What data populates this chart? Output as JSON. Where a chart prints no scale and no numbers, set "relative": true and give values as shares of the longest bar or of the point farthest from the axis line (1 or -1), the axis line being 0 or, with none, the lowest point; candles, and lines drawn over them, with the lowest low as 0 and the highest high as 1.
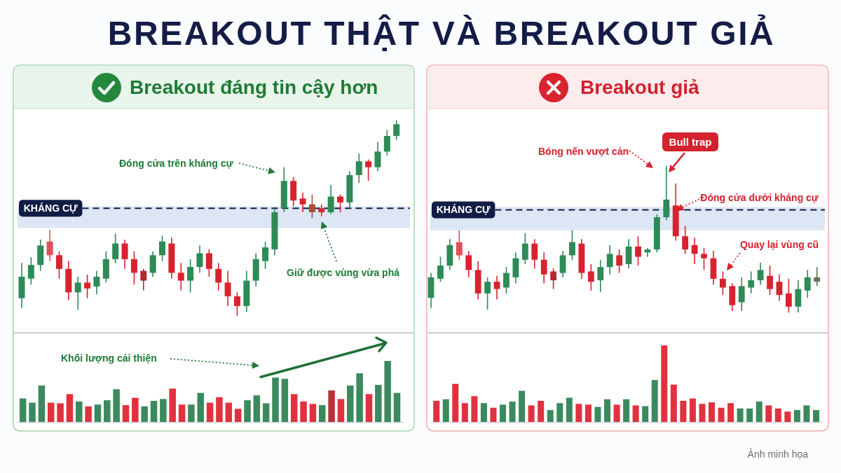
{
  "chart_data": [
    {
      "type": "other",
      "title": "BREAKOUT THẬT VÀ BREAKOUT GIẢ"
    },
    {
      "type": "candlestick",
      "title": "Breakout đáng tin cậy hơn",
      "relative": true,
      "categories": [
        null,
        null,
        null,
        null,
        null,
        null,
        null,
        null,
        null,
        null,
        null,
        null,
        null,
        null,
        null,
        null,
        null,
        null,
        null,
        null,
        null,
        null,
        null,
        null,
        null,
        null,
        null,
        null,
        null,
        null,
        null,
        null,
        null,
        null,
        null,
        null,
        null,
        null,
        null,
        null,
        null
      ],
      "ohlc": [
        [
          0.09,
          0.27,
          0.04,
          0.2
        ],
        [
          0.19,
          0.3,
          0.16,
          0.26
        ],
        [
          0.26,
          0.39,
          0.23,
          0.36
        ],
        [
          0.38,
          0.44,
          0.28,
          0.31
        ],
        [
          0.31,
          0.33,
          0.19,
          0.24
        ],
        [
          0.24,
          0.28,
          0.08,
          0.12
        ],
        [
          0.12,
          0.2,
          0.03,
          0.17
        ],
        [
          0.17,
          0.21,
          0.09,
          0.14
        ],
        [
          0.15,
          0.23,
          0.11,
          0.2
        ],
        [
          0.19,
          0.33,
          0.17,
          0.29
        ],
        [
          0.29,
          0.42,
          0.27,
          0.37
        ],
        [
          0.37,
          0.39,
          0.24,
          0.29
        ],
        [
          0.29,
          0.33,
          0.16,
          0.22
        ],
        [
          0.23,
          0.24,
          0.13,
          0.18
        ],
        [
          0.22,
          0.33,
          0.2,
          0.31
        ],
        [
          0.31,
          0.41,
          0.28,
          0.38
        ],
        [
          0.37,
          0.4,
          0.19,
          0.22
        ],
        [
          0.22,
          0.27,
          0.13,
          0.18
        ],
        [
          0.18,
          0.29,
          0.12,
          0.25
        ],
        [
          0.25,
          0.36,
          0.22,
          0.32
        ],
        [
          0.32,
          0.34,
          0.2,
          0.24
        ],
        [
          0.24,
          0.27,
          0.13,
          0.17
        ],
        [
          0.17,
          0.23,
          0.05,
          0.1
        ],
        [
          0.1,
          0.12,
          0,
          0.05
        ],
        [
          0.05,
          0.23,
          0.02,
          0.18
        ],
        [
          0.18,
          0.32,
          0.15,
          0.29
        ],
        [
          0.28,
          0.38,
          0.24,
          0.35
        ],
        [
          0.34,
          0.55,
          0.31,
          0.53
        ],
        [
          0.55,
          0.76,
          0.53,
          0.69
        ],
        [
          0.69,
          0.71,
          0.56,
          0.59
        ],
        [
          0.6,
          0.63,
          0.53,
          0.57
        ],
        [
          0.57,
          0.62,
          0.5,
          0.53
        ],
        [
          0.55,
          0.57,
          0.51,
          0.53
        ],
        [
          0.53,
          0.67,
          0.52,
          0.61
        ],
        [
          0.61,
          0.62,
          0.53,
          0.58
        ],
        [
          0.58,
          0.74,
          0.55,
          0.72
        ],
        [
          0.72,
          0.83,
          0.68,
          0.79
        ],
        [
          0.79,
          0.8,
          0.69,
          0.76
        ],
        [
          0.76,
          0.89,
          0.74,
          0.84
        ],
        [
          0.84,
          0.95,
          0.82,
          0.92
        ],
        [
          0.92,
          1,
          0.9,
          0.98
        ]
      ],
      "colors": [
        "#2e8a56",
        "#2e8a56",
        "#2e8a56",
        "#e44e58",
        "#d8232f",
        "#d8232f",
        "#2e8a56",
        "#d8232f",
        "#2e8a56",
        "#2e8a56",
        "#2e8a56",
        "#d8232f",
        "#d8232f",
        "#b1282e",
        "#2e8a56",
        "#2e8a56",
        "#d8232f",
        "#d8232f",
        "#2e8a56",
        "#2e8a56",
        "#d8232f",
        "#d8232f",
        "#d8232f",
        "#d8232f",
        "#2e8a56",
        "#2e8a56",
        "#2e8a56",
        "#2e8a56",
        "#2e8a56",
        "#d8232f",
        "#d8232f",
        "#a5503a",
        "#d8232f",
        "#2e8a56",
        "#d8232f",
        "#2e8a56",
        "#2e8a56",
        "#d8232f",
        "#2e8a56",
        "#2e8a56",
        "#2e8a56"
      ],
      "bands": [
        {
          "axis": "y",
          "from": 0.45,
          "to": 0.56,
          "color": "#dce6f4"
        }
      ],
      "ref_lines": [
        {
          "axis": "y",
          "value": 0.55,
          "label": "KHÁNG CỰ",
          "color": "#111d45",
          "line_style": "dashed"
        }
      ],
      "annotations": [
        "Đóng cửa trên kháng cự",
        "Giữ được vùng vừa phá"
      ]
    },
    {
      "type": "bar",
      "relative": true,
      "categories": [
        null,
        null,
        null,
        null,
        null,
        null,
        null,
        null,
        null,
        null,
        null,
        null,
        null,
        null,
        null,
        null,
        null,
        null,
        null,
        null,
        null,
        null,
        null,
        null,
        null,
        null,
        null,
        null,
        null,
        null,
        null,
        null,
        null,
        null,
        null,
        null,
        null,
        null,
        null,
        null,
        null
      ],
      "values": [
        0.39,
        0.32,
        0.6,
        0.32,
        0.31,
        0.46,
        0.34,
        0.26,
        0.29,
        0.36,
        0.54,
        0.28,
        0.4,
        0.26,
        0.35,
        0.38,
        0.55,
        0.29,
        0.29,
        0.48,
        0.32,
        0.41,
        0.32,
        0.22,
        0.36,
        0.44,
        0.31,
        0.73,
        0.71,
        0.46,
        0.34,
        0.3,
        0.28,
        0.52,
        0.38,
        0.6,
        0.8,
        0.46,
        0.61,
        1,
        0.48
      ],
      "colors": [
        "#3b8a5e",
        "#3b8a5e",
        "#3b8a5e",
        "#e0323e",
        "#e0323e",
        "#e0323e",
        "#3b8a5e",
        "#e0323e",
        "#3b8a5e",
        "#3b8a5e",
        "#3b8a5e",
        "#e0323e",
        "#e0323e",
        "#3b8a5e",
        "#3b8a5e",
        "#3b8a5e",
        "#e0323e",
        "#e0323e",
        "#3b8a5e",
        "#3b8a5e",
        "#e0323e",
        "#e0323e",
        "#e0323e",
        "#e0323e",
        "#3b8a5e",
        "#3b8a5e",
        "#3b8a5e",
        "#3b8a5e",
        "#3b8a5e",
        "#e0323e",
        "#e0323e",
        "#e0323e",
        "#3b8a5e",
        "#b8303a",
        "#e0323e",
        "#3b8a5e",
        "#3b8a5e",
        "#e0323e",
        "#3b8a5e",
        "#3b8a5e",
        "#3b8a5e"
      ],
      "annotations": [
        "Khối lượng cải thiện"
      ]
    },
    {
      "type": "candlestick",
      "title": "Breakout giả",
      "relative": true,
      "categories": [
        null,
        null,
        null,
        null,
        null,
        null,
        null,
        null,
        null,
        null,
        null,
        null,
        null,
        null,
        null,
        null,
        null,
        null,
        null,
        null,
        null,
        null,
        null,
        null,
        null,
        null,
        null,
        null,
        null,
        null,
        null,
        null,
        null,
        null,
        null,
        null,
        null,
        null,
        null,
        null,
        null,
        null
      ],
      "ohlc": [
        [
          0.1,
          0.27,
          0.03,
          0.24
        ],
        [
          0.23,
          0.38,
          0.21,
          0.32
        ],
        [
          0.32,
          0.5,
          0.29,
          0.46
        ],
        [
          0.48,
          0.56,
          0.36,
          0.39
        ],
        [
          0.39,
          0.42,
          0.24,
          0.29
        ],
        [
          0.29,
          0.35,
          0.09,
          0.13
        ],
        [
          0.13,
          0.24,
          0.02,
          0.21
        ],
        [
          0.21,
          0.25,
          0.09,
          0.16
        ],
        [
          0.17,
          0.31,
          0.13,
          0.27
        ],
        [
          0.24,
          0.41,
          0.2,
          0.37
        ],
        [
          0.36,
          0.54,
          0.33,
          0.47
        ],
        [
          0.47,
          0.5,
          0.3,
          0.36
        ],
        [
          0.36,
          0.41,
          0.2,
          0.26
        ],
        [
          0.28,
          0.3,
          0.16,
          0.22
        ],
        [
          0.27,
          0.42,
          0.24,
          0.39
        ],
        [
          0.39,
          0.56,
          0.36,
          0.48
        ],
        [
          0.47,
          0.5,
          0.23,
          0.27
        ],
        [
          0.28,
          0.33,
          0.15,
          0.21
        ],
        [
          0.22,
          0.36,
          0.14,
          0.31
        ],
        [
          0.31,
          0.46,
          0.26,
          0.4
        ],
        [
          0.39,
          0.43,
          0.27,
          0.32
        ],
        [
          0.33,
          0.5,
          0.3,
          0.45
        ],
        [
          0.45,
          0.52,
          0.32,
          0.38
        ],
        [
          0.41,
          0.44,
          0.38,
          0.43
        ],
        [
          0.43,
          0.67,
          0.41,
          0.65
        ],
        [
          0.65,
          1,
          0.63,
          0.77
        ],
        [
          0.73,
          0.88,
          0.49,
          0.52
        ],
        [
          0.52,
          0.59,
          0.4,
          0.43
        ],
        [
          0.46,
          0.51,
          0.33,
          0.4
        ],
        [
          0.4,
          0.44,
          0.29,
          0.37
        ],
        [
          0.37,
          0.42,
          0.19,
          0.23
        ],
        [
          0.23,
          0.28,
          0.12,
          0.17
        ],
        [
          0.18,
          0.2,
          0.01,
          0.05
        ],
        [
          0.07,
          0.24,
          0.01,
          0.18
        ],
        [
          0.17,
          0.28,
          0.13,
          0.22
        ],
        [
          0.22,
          0.34,
          0.19,
          0.29
        ],
        [
          0.25,
          0.32,
          0.12,
          0.16
        ],
        [
          0.21,
          0.26,
          0.08,
          0.12
        ],
        [
          0.13,
          0.23,
          0,
          0.04
        ],
        [
          0.04,
          0.22,
          0,
          0.16
        ],
        [
          0.15,
          0.29,
          0.1,
          0.24
        ],
        [
          0.24,
          0.31,
          0.18,
          0.21
        ]
      ],
      "colors": [
        "#2e8a56",
        "#2e8a56",
        "#2e8a56",
        "#e44e58",
        "#d8232f",
        "#d8232f",
        "#2e8a56",
        "#d8232f",
        "#2e8a56",
        "#2e8a56",
        "#2e8a56",
        "#d8232f",
        "#d8232f",
        "#b1282e",
        "#2e8a56",
        "#2e8a56",
        "#d8232f",
        "#d8232f",
        "#2e8a56",
        "#2e8a56",
        "#d8232f",
        "#2e8a56",
        "#d8232f",
        "#2e8a56",
        "#2e8a56",
        "#2e8a56",
        "#d8232f",
        "#d8232f",
        "#d8232f",
        "#d8232f",
        "#d8232f",
        "#d8232f",
        "#d8232f",
        "#2e8a56",
        "#2e8a56",
        "#2e8a56",
        "#d8232f",
        "#d8232f",
        "#d8232f",
        "#2e8a56",
        "#2e8a56",
        "#6a6e55"
      ],
      "bands": [
        {
          "axis": "y",
          "from": 0.56,
          "to": 0.72,
          "color": "#dce6f4"
        }
      ],
      "ref_lines": [
        {
          "axis": "y",
          "value": 0.7,
          "label": "KHÁNG CỰ",
          "color": "#111d45",
          "line_style": "dashed"
        }
      ],
      "annotations": [
        "Bóng nến vượt cản",
        "Bull trap",
        "Đóng cửa dưới kháng cự",
        "Quay lại vùng cũ"
      ]
    },
    {
      "type": "bar",
      "relative": true,
      "categories": [
        null,
        null,
        null,
        null,
        null,
        null,
        null,
        null,
        null,
        null,
        null,
        null,
        null,
        null,
        null,
        null,
        null,
        null,
        null,
        null,
        null,
        null,
        null,
        null,
        null,
        null,
        null,
        null,
        null,
        null,
        null,
        null,
        null,
        null,
        null,
        null,
        null,
        null,
        null,
        null,
        null
      ],
      "values": [
        0.28,
        0.3,
        0.5,
        0.25,
        0.34,
        0.25,
        0.19,
        0.23,
        0.27,
        0.41,
        0.22,
        0.28,
        0.16,
        0.25,
        0.32,
        0.24,
        0.23,
        0.2,
        0.3,
        0.23,
        0.3,
        0.22,
        0.21,
        0.55,
        1,
        0.49,
        0.28,
        0.31,
        0.24,
        0.26,
        0.19,
        0.25,
        0.18,
        0.18,
        0.27,
        0.22,
        0.18,
        0.14,
        0.16,
        0.22,
        0.16
      ],
      "colors": [
        "#e0323e",
        "#3b8a5e",
        "#e0323e",
        "#e0323e",
        "#e0323e",
        "#3b8a5e",
        "#e0323e",
        "#3b8a5e",
        "#3b8a5e",
        "#3b8a5e",
        "#e0323e",
        "#e0323e",
        "#3b8a5e",
        "#3b8a5e",
        "#3b8a5e",
        "#e0323e",
        "#e0323e",
        "#3b8a5e",
        "#3b8a5e",
        "#e0323e",
        "#3b8a5e",
        "#e0323e",
        "#3b8a5e",
        "#3b8a5e",
        "#e0323e",
        "#e0323e",
        "#e0323e",
        "#e0323e",
        "#e0323e",
        "#e0323e",
        "#e0323e",
        "#e0323e",
        "#3b8a5e",
        "#3b8a5e",
        "#3b8a5e",
        "#e0323e",
        "#e0323e",
        "#e0323e",
        "#3b8a5e",
        "#3b8a5e",
        "#3b8a5e"
      ],
      "annotations": [
        "Ảnh minh họa"
      ]
    }
  ]
}
